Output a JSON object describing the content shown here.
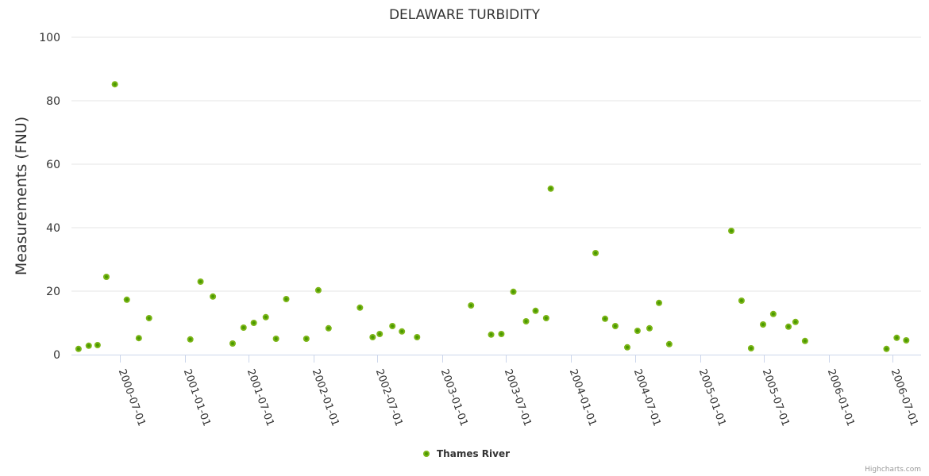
{
  "chart_data": {
    "type": "scatter",
    "title": "DELAWARE TURBIDITY",
    "xlabel": "",
    "ylabel": "Measurements (FNU)",
    "ylim": [
      0,
      100
    ],
    "yticks": [
      0,
      20,
      40,
      60,
      80,
      100
    ],
    "xlim": [
      "2000-02-15",
      "2006-09-20"
    ],
    "xticks": [
      "2000-07-01",
      "2001-01-01",
      "2001-07-01",
      "2002-01-01",
      "2002-07-01",
      "2003-01-01",
      "2003-07-01",
      "2004-01-01",
      "2004-07-01",
      "2005-01-01",
      "2005-07-01",
      "2006-01-01",
      "2006-07-01"
    ],
    "grid": true,
    "legend_position": "bottom-center",
    "credits": "Highcharts.com",
    "series": [
      {
        "name": "Thames River",
        "color": "#7cb518",
        "center_color": "#4a9a00",
        "points": [
          {
            "x": "2000-03-06",
            "y": 1.8
          },
          {
            "x": "2000-04-04",
            "y": 2.8
          },
          {
            "x": "2000-04-29",
            "y": 3.0
          },
          {
            "x": "2000-05-24",
            "y": 24.5
          },
          {
            "x": "2000-06-17",
            "y": 85.2
          },
          {
            "x": "2000-07-21",
            "y": 17.3
          },
          {
            "x": "2000-08-24",
            "y": 5.2
          },
          {
            "x": "2000-09-22",
            "y": 11.5
          },
          {
            "x": "2001-01-17",
            "y": 4.8
          },
          {
            "x": "2001-02-15",
            "y": 23.0
          },
          {
            "x": "2001-03-22",
            "y": 18.3
          },
          {
            "x": "2001-05-17",
            "y": 3.5
          },
          {
            "x": "2001-06-17",
            "y": 8.5
          },
          {
            "x": "2001-07-16",
            "y": 10.0
          },
          {
            "x": "2001-08-19",
            "y": 11.8
          },
          {
            "x": "2001-09-17",
            "y": 5.0
          },
          {
            "x": "2001-10-16",
            "y": 17.5
          },
          {
            "x": "2001-12-12",
            "y": 5.0
          },
          {
            "x": "2002-01-15",
            "y": 20.3
          },
          {
            "x": "2002-02-13",
            "y": 8.3
          },
          {
            "x": "2002-05-13",
            "y": 14.8
          },
          {
            "x": "2002-06-18",
            "y": 5.5
          },
          {
            "x": "2002-07-08",
            "y": 6.5
          },
          {
            "x": "2002-08-13",
            "y": 9.0
          },
          {
            "x": "2002-09-09",
            "y": 7.3
          },
          {
            "x": "2002-10-22",
            "y": 5.5
          },
          {
            "x": "2003-03-24",
            "y": 15.5
          },
          {
            "x": "2003-05-20",
            "y": 6.3
          },
          {
            "x": "2003-06-18",
            "y": 6.5
          },
          {
            "x": "2003-07-22",
            "y": 19.8
          },
          {
            "x": "2003-08-27",
            "y": 10.5
          },
          {
            "x": "2003-09-23",
            "y": 13.8
          },
          {
            "x": "2003-10-23",
            "y": 11.5
          },
          {
            "x": "2003-11-05",
            "y": 52.3
          },
          {
            "x": "2004-03-11",
            "y": 32.0
          },
          {
            "x": "2004-04-07",
            "y": 11.3
          },
          {
            "x": "2004-05-06",
            "y": 9.0
          },
          {
            "x": "2004-06-09",
            "y": 2.3
          },
          {
            "x": "2004-07-08",
            "y": 7.5
          },
          {
            "x": "2004-08-11",
            "y": 8.3
          },
          {
            "x": "2004-09-07",
            "y": 16.3
          },
          {
            "x": "2004-10-06",
            "y": 3.3
          },
          {
            "x": "2005-03-31",
            "y": 39.0
          },
          {
            "x": "2005-04-29",
            "y": 17.0
          },
          {
            "x": "2005-05-26",
            "y": 2.0
          },
          {
            "x": "2005-06-29",
            "y": 9.5
          },
          {
            "x": "2005-07-28",
            "y": 12.8
          },
          {
            "x": "2005-09-09",
            "y": 8.8
          },
          {
            "x": "2005-09-29",
            "y": 10.3
          },
          {
            "x": "2005-10-26",
            "y": 4.3
          },
          {
            "x": "2006-06-14",
            "y": 1.8
          },
          {
            "x": "2006-07-13",
            "y": 5.3
          },
          {
            "x": "2006-08-09",
            "y": 4.5
          }
        ]
      }
    ]
  }
}
